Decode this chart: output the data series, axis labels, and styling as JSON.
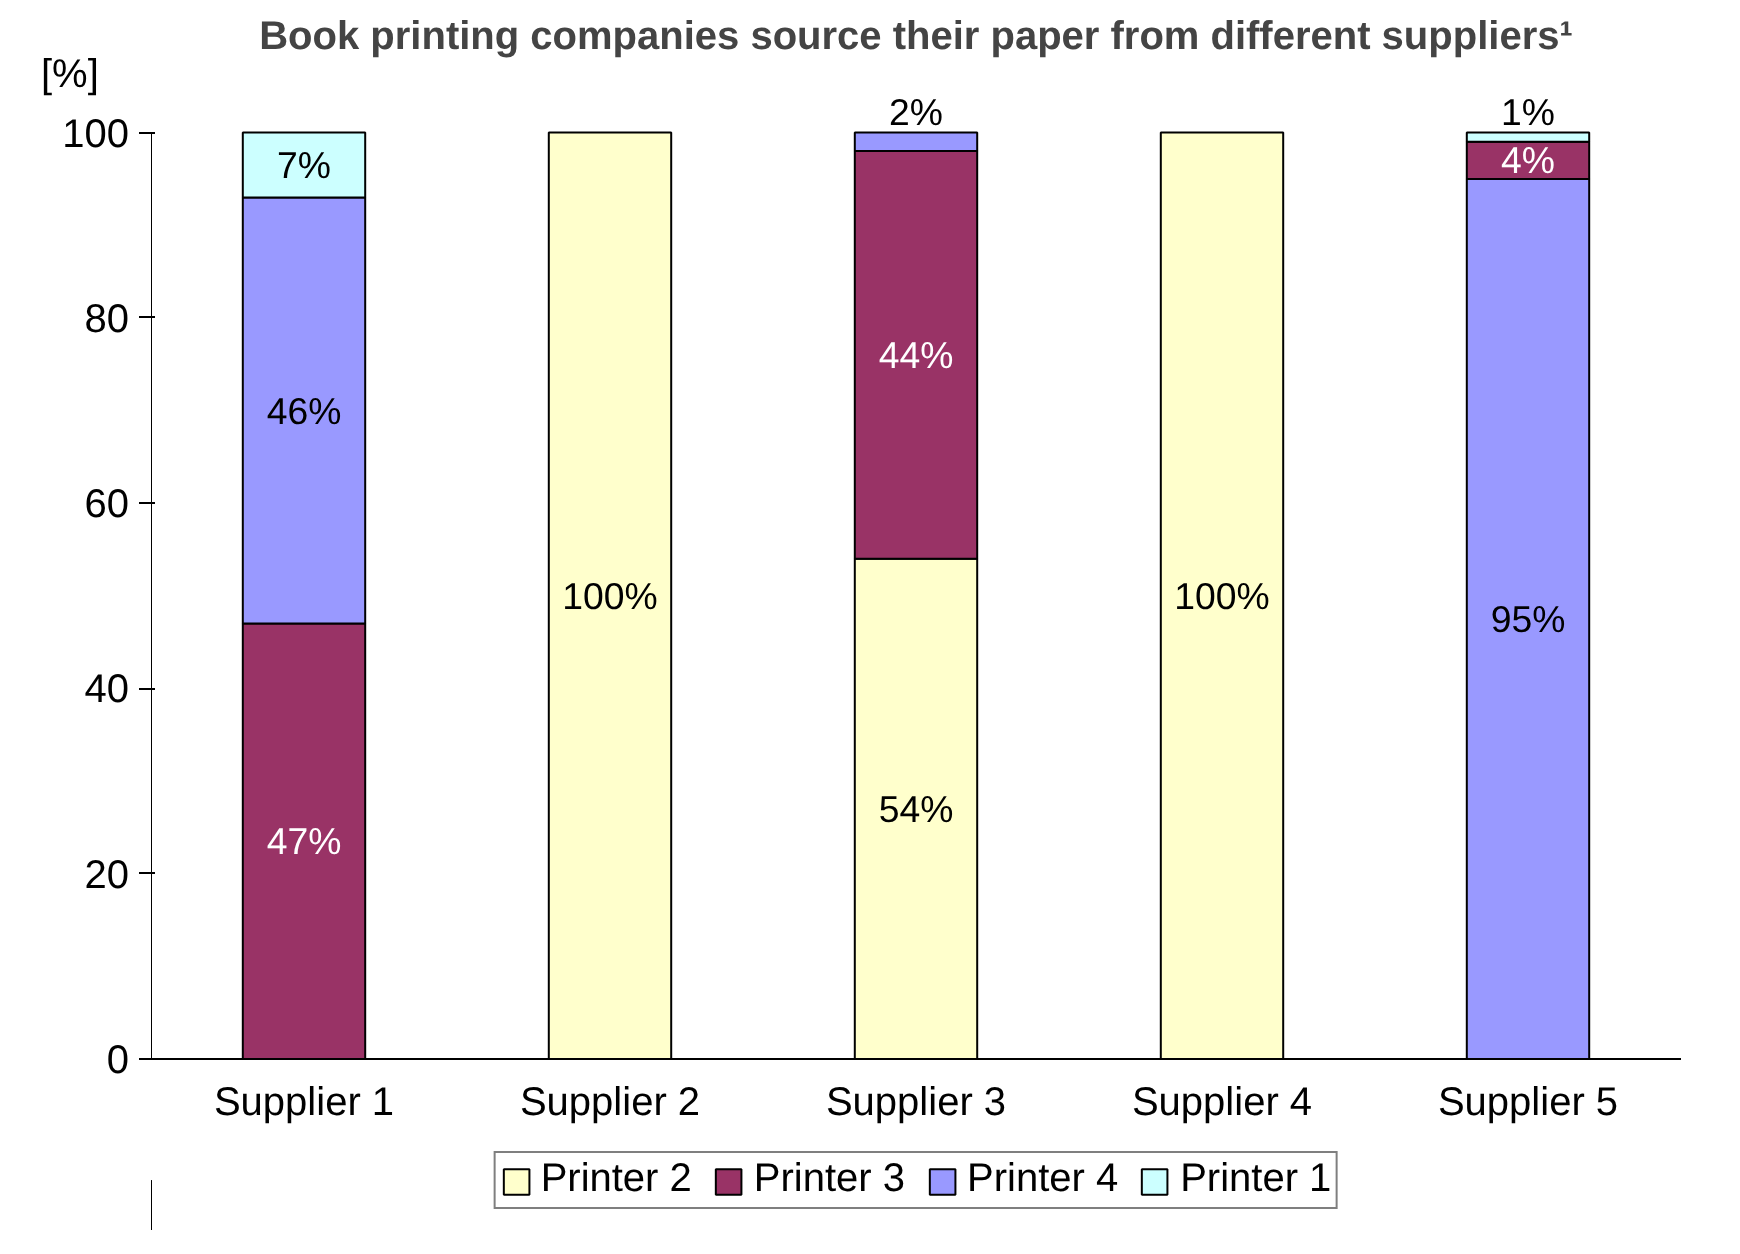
{
  "chart_data": {
    "type": "bar",
    "stacked": true,
    "title": "Book printing companies source their paper from different suppliers¹",
    "ylabel": "[%]",
    "categories": [
      "Supplier 1",
      "Supplier 2",
      "Supplier 3",
      "Supplier 4",
      "Supplier 5"
    ],
    "series": [
      {
        "color": "#9999ff",
        "values": [
          null,
          null,
          null,
          null,
          95
        ],
        "value_labels": [
          null,
          null,
          null,
          null,
          "95%"
        ]
      },
      {
        "name": "Printer 2",
        "color": "#ffffcc",
        "values": [
          null,
          100,
          54,
          100,
          null
        ],
        "value_labels": [
          null,
          "100%",
          "54%",
          "100%",
          null
        ]
      },
      {
        "name": "Printer 3",
        "color": "#993366",
        "values": [
          47,
          null,
          44,
          null,
          4
        ],
        "value_labels": [
          "47%",
          null,
          "44%",
          null,
          "4%"
        ]
      },
      {
        "name": "Printer 4",
        "color": "#9999ff",
        "values": [
          46,
          null,
          2,
          null,
          null
        ],
        "value_labels": [
          "46%",
          null,
          "2%",
          null,
          null
        ]
      },
      {
        "name": "Printer 1",
        "color": "#ccffff",
        "values": [
          7,
          null,
          null,
          null,
          1
        ],
        "value_labels": [
          "7%",
          null,
          null,
          null,
          "1%"
        ]
      }
    ],
    "ylim": [
      0,
      100
    ],
    "yticks": [
      0,
      20,
      40,
      60,
      80,
      100
    ],
    "grid": false,
    "legend": "bottom"
  }
}
